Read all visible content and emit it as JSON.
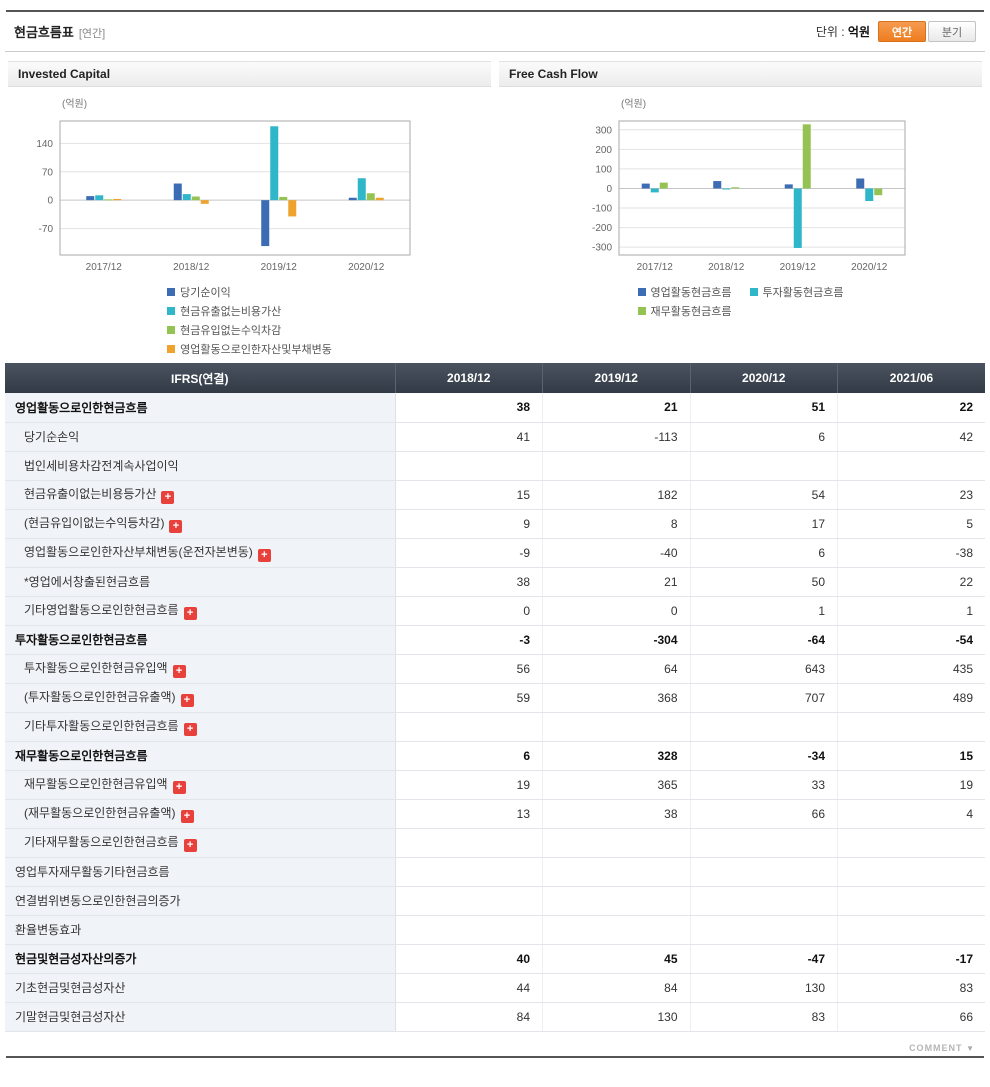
{
  "colors": {
    "accent_orange": "#ee7d1e",
    "negative_red": "#e01f1f",
    "table_header_bg": "#39424e",
    "label_column_bg": "#f0f3f7",
    "bar_blue": "#3b6cb4",
    "bar_cyan": "#2fb6c9",
    "bar_green": "#94c353",
    "bar_orange": "#efa32f"
  },
  "header": {
    "title": "현금흐름표",
    "subtitle": "[연간]",
    "unit_prefix": "단위 :",
    "unit_value": "억원",
    "toggle": {
      "annual": "연간",
      "quarterly": "분기"
    }
  },
  "chart_data": [
    {
      "type": "bar",
      "title": "Invested Capital",
      "unit_label": "(억원)",
      "categories": [
        "2017/12",
        "2018/12",
        "2019/12",
        "2020/12"
      ],
      "series": [
        {
          "name": "당기순이익",
          "color": "#3b6cb4",
          "values": [
            10,
            41,
            -113,
            6
          ]
        },
        {
          "name": "현금유출없는비용가산",
          "color": "#2fb6c9",
          "values": [
            12,
            15,
            182,
            54
          ]
        },
        {
          "name": "현금유입없는수익차감",
          "color": "#94c353",
          "values": [
            2,
            9,
            8,
            17
          ]
        },
        {
          "name": "영업활동으로인한자산및부채변동",
          "color": "#efa32f",
          "values": [
            3,
            -9,
            -40,
            6
          ]
        }
      ],
      "yticks": [
        140,
        70,
        0,
        -70
      ],
      "ylim": [
        -135,
        195
      ],
      "grid": true,
      "legend_position": "bottom",
      "legend_columns": 1
    },
    {
      "type": "bar",
      "title": "Free Cash Flow",
      "unit_label": "(억원)",
      "categories": [
        "2017/12",
        "2018/12",
        "2019/12",
        "2020/12"
      ],
      "series": [
        {
          "name": "영업활동현금흐름",
          "color": "#3b6cb4",
          "values": [
            25,
            38,
            21,
            51
          ]
        },
        {
          "name": "투자활동현금흐름",
          "color": "#2fb6c9",
          "values": [
            -20,
            -3,
            -304,
            -64
          ]
        },
        {
          "name": "재무활동현금흐름",
          "color": "#94c353",
          "values": [
            30,
            6,
            328,
            -34
          ]
        }
      ],
      "yticks": [
        300,
        200,
        100,
        0,
        -100,
        -200,
        -300
      ],
      "ylim": [
        -340,
        345
      ],
      "grid": true,
      "legend_position": "bottom",
      "legend_columns": 2
    }
  ],
  "table": {
    "columns": [
      "IFRS(연결)",
      "2018/12",
      "2019/12",
      "2020/12",
      "2021/06"
    ],
    "rows": [
      {
        "label": "영업활동으로인한현금흐름",
        "indent": 0,
        "bold": true,
        "expand": false,
        "values": [
          "38",
          "21",
          "51",
          "22"
        ]
      },
      {
        "label": "당기순손익",
        "indent": 1,
        "bold": false,
        "expand": false,
        "values": [
          "41",
          "-113",
          "6",
          "42"
        ]
      },
      {
        "label": "법인세비용차감전계속사업이익",
        "indent": 1,
        "bold": false,
        "expand": false,
        "values": [
          "",
          "",
          "",
          ""
        ]
      },
      {
        "label": "현금유출이없는비용등가산",
        "indent": 1,
        "bold": false,
        "expand": true,
        "values": [
          "15",
          "182",
          "54",
          "23"
        ]
      },
      {
        "label": "(현금유입이없는수익등차감)",
        "indent": 1,
        "bold": false,
        "expand": true,
        "values": [
          "9",
          "8",
          "17",
          "5"
        ]
      },
      {
        "label": "영업활동으로인한자산부채변동(운전자본변동)",
        "indent": 1,
        "bold": false,
        "expand": true,
        "values": [
          "-9",
          "-40",
          "6",
          "-38"
        ]
      },
      {
        "label": "*영업에서창출된현금흐름",
        "indent": 1,
        "bold": false,
        "expand": false,
        "values": [
          "38",
          "21",
          "50",
          "22"
        ]
      },
      {
        "label": "기타영업활동으로인한현금흐름",
        "indent": 1,
        "bold": false,
        "expand": true,
        "values": [
          "0",
          "0",
          "1",
          "1"
        ]
      },
      {
        "label": "투자활동으로인한현금흐름",
        "indent": 0,
        "bold": true,
        "expand": false,
        "values": [
          "-3",
          "-304",
          "-64",
          "-54"
        ]
      },
      {
        "label": "투자활동으로인한현금유입액",
        "indent": 1,
        "bold": false,
        "expand": true,
        "values": [
          "56",
          "64",
          "643",
          "435"
        ]
      },
      {
        "label": "(투자활동으로인한현금유출액)",
        "indent": 1,
        "bold": false,
        "expand": true,
        "values": [
          "59",
          "368",
          "707",
          "489"
        ]
      },
      {
        "label": "기타투자활동으로인한현금흐름",
        "indent": 1,
        "bold": false,
        "expand": true,
        "values": [
          "",
          "",
          "",
          ""
        ]
      },
      {
        "label": "재무활동으로인한현금흐름",
        "indent": 0,
        "bold": true,
        "expand": false,
        "values": [
          "6",
          "328",
          "-34",
          "15"
        ]
      },
      {
        "label": "재무활동으로인한현금유입액",
        "indent": 1,
        "bold": false,
        "expand": true,
        "values": [
          "19",
          "365",
          "33",
          "19"
        ]
      },
      {
        "label": "(재무활동으로인한현금유출액)",
        "indent": 1,
        "bold": false,
        "expand": true,
        "values": [
          "13",
          "38",
          "66",
          "4"
        ]
      },
      {
        "label": "기타재무활동으로인한현금흐름",
        "indent": 1,
        "bold": false,
        "expand": true,
        "values": [
          "",
          "",
          "",
          ""
        ]
      },
      {
        "label": "영업투자재무활동기타현금흐름",
        "indent": 0,
        "bold": false,
        "expand": false,
        "values": [
          "",
          "",
          "",
          ""
        ]
      },
      {
        "label": "연결범위변동으로인한현금의증가",
        "indent": 0,
        "bold": false,
        "expand": false,
        "values": [
          "",
          "",
          "",
          ""
        ]
      },
      {
        "label": "환율변동효과",
        "indent": 0,
        "bold": false,
        "expand": false,
        "values": [
          "",
          "",
          "",
          ""
        ]
      },
      {
        "label": "현금및현금성자산의증가",
        "indent": 0,
        "bold": true,
        "expand": false,
        "values": [
          "40",
          "45",
          "-47",
          "-17"
        ]
      },
      {
        "label": "기초현금및현금성자산",
        "indent": 0,
        "bold": false,
        "expand": false,
        "values": [
          "44",
          "84",
          "130",
          "83"
        ]
      },
      {
        "label": "기말현금및현금성자산",
        "indent": 0,
        "bold": false,
        "expand": false,
        "values": [
          "84",
          "130",
          "83",
          "66"
        ]
      }
    ]
  },
  "footer": {
    "comment_label": "COMMENT"
  }
}
